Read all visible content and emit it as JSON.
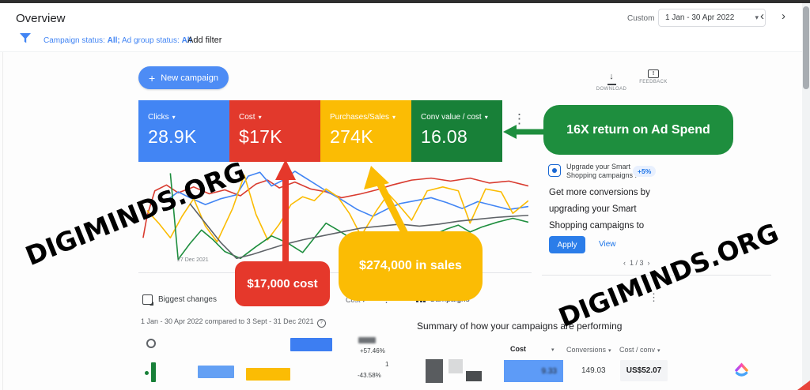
{
  "header": {
    "title": "Overview",
    "custom_label": "Custom",
    "date_range": "1 Jan - 30 Apr 2022"
  },
  "icons": {
    "caret_down": "▾",
    "plus": "+",
    "chevron_left": "‹",
    "chevron_right": "›",
    "dots_vertical": "⋮",
    "help": "?",
    "download_arrow": "↓",
    "feedback_mark": "!"
  },
  "filter_bar": {
    "campaign_status_label": "Campaign status:",
    "campaign_status_value": "All;",
    "ad_group_status_label": "Ad group status:",
    "ad_group_status_value": "All",
    "add_filter": "Add filter"
  },
  "toolbar": {
    "new_campaign": "New campaign",
    "download": "DOWNLOAD",
    "feedback": "FEEDBACK"
  },
  "scorecards": [
    {
      "label": "Clicks",
      "value": "28.9K",
      "color": "#4285f4"
    },
    {
      "label": "Cost",
      "value": "$17K",
      "color": "#e2392c"
    },
    {
      "label": "Purchases/Sales",
      "value": "274K",
      "color": "#fbbc04"
    },
    {
      "label": "Conv value / cost",
      "value": "16.08",
      "color": "#188038"
    }
  ],
  "callouts": {
    "roas": {
      "text": "16X return on Ad Spend",
      "color": "#1e8e3e"
    },
    "cost": {
      "text": "$17,000 cost",
      "color": "#e5382b"
    },
    "sales": {
      "text": "$274,000 in sales",
      "color": "#fbbc04"
    }
  },
  "chart": {
    "type": "line",
    "x_axis_label": "27 Dec 2021",
    "series": [
      {
        "name": "red",
        "color": "#d93b2f",
        "points": [
          [
            1,
            72
          ],
          [
            2,
            50
          ],
          [
            4,
            24
          ],
          [
            7,
            18
          ],
          [
            10,
            26
          ],
          [
            14,
            20
          ],
          [
            18,
            27
          ],
          [
            22,
            23
          ],
          [
            26,
            29
          ],
          [
            30,
            17
          ],
          [
            33,
            13
          ],
          [
            36,
            21
          ],
          [
            40,
            15
          ],
          [
            44,
            22
          ],
          [
            48,
            25
          ],
          [
            52,
            31
          ],
          [
            57,
            27
          ],
          [
            61,
            23
          ],
          [
            65,
            18
          ],
          [
            70,
            13
          ],
          [
            75,
            11
          ],
          [
            80,
            14
          ],
          [
            85,
            11
          ],
          [
            90,
            16
          ],
          [
            95,
            14
          ],
          [
            100,
            19
          ]
        ]
      },
      {
        "name": "blue",
        "color": "#4285f4",
        "points": [
          [
            7,
            34
          ],
          [
            10,
            25
          ],
          [
            13,
            31
          ],
          [
            17,
            38
          ],
          [
            21,
            32
          ],
          [
            25,
            28
          ],
          [
            28,
            9
          ],
          [
            31,
            5
          ],
          [
            34,
            19
          ],
          [
            37,
            13
          ],
          [
            40,
            4
          ],
          [
            44,
            14
          ],
          [
            48,
            24
          ],
          [
            52,
            33
          ],
          [
            56,
            43
          ],
          [
            60,
            50
          ],
          [
            64,
            42
          ],
          [
            67,
            37
          ],
          [
            71,
            34
          ],
          [
            75,
            31
          ],
          [
            79,
            36
          ],
          [
            83,
            42
          ],
          [
            87,
            35
          ],
          [
            91,
            39
          ],
          [
            95,
            43
          ],
          [
            100,
            40
          ]
        ]
      },
      {
        "name": "yellow",
        "color": "#fbbc04",
        "points": [
          [
            2,
            44
          ],
          [
            5,
            57
          ],
          [
            8,
            72
          ],
          [
            11,
            50
          ],
          [
            14,
            32
          ],
          [
            17,
            60
          ],
          [
            20,
            76
          ],
          [
            24,
            42
          ],
          [
            27,
            8
          ],
          [
            30,
            48
          ],
          [
            33,
            74
          ],
          [
            36,
            58
          ],
          [
            39,
            38
          ],
          [
            42,
            30
          ],
          [
            45,
            34
          ],
          [
            48,
            22
          ],
          [
            51,
            30
          ],
          [
            54,
            47
          ],
          [
            57,
            70
          ],
          [
            61,
            44
          ],
          [
            64,
            27
          ],
          [
            67,
            40
          ],
          [
            70,
            54
          ],
          [
            74,
            24
          ],
          [
            78,
            20
          ],
          [
            82,
            24
          ],
          [
            85,
            57
          ],
          [
            89,
            22
          ],
          [
            93,
            25
          ],
          [
            96,
            47
          ],
          [
            100,
            34
          ]
        ]
      },
      {
        "name": "green",
        "color": "#1e8e3e",
        "points": [
          [
            8,
            6
          ],
          [
            10,
            94
          ],
          [
            13,
            78
          ],
          [
            16,
            64
          ],
          [
            19,
            74
          ],
          [
            22,
            86
          ],
          [
            26,
            93
          ],
          [
            30,
            81
          ],
          [
            34,
            70
          ],
          [
            38,
            77
          ],
          [
            42,
            87
          ],
          [
            45,
            72
          ],
          [
            48,
            57
          ],
          [
            51,
            64
          ],
          [
            55,
            74
          ],
          [
            59,
            71
          ],
          [
            63,
            66
          ],
          [
            67,
            68
          ],
          [
            71,
            74
          ],
          [
            75,
            70
          ],
          [
            79,
            63
          ],
          [
            82,
            59
          ],
          [
            85,
            66
          ],
          [
            88,
            61
          ],
          [
            92,
            56
          ],
          [
            96,
            52
          ],
          [
            100,
            56
          ]
        ]
      },
      {
        "name": "gray",
        "color": "#5f6368",
        "points": [
          [
            13,
            37
          ],
          [
            17,
            57
          ],
          [
            21,
            77
          ],
          [
            25,
            93
          ],
          [
            29,
            89
          ],
          [
            33,
            84
          ],
          [
            37,
            79
          ],
          [
            42,
            74
          ],
          [
            47,
            70
          ],
          [
            52,
            66
          ],
          [
            57,
            62
          ],
          [
            62,
            60
          ],
          [
            67,
            58
          ],
          [
            72,
            60
          ],
          [
            77,
            58
          ],
          [
            82,
            55
          ],
          [
            87,
            53
          ],
          [
            92,
            51
          ],
          [
            100,
            49
          ]
        ]
      }
    ]
  },
  "promo": {
    "title": "Upgrade your Smart Shopping campaigns !",
    "badge": "+5%",
    "body": "Get more conversions by upgrading your Smart Shopping campaigns to",
    "apply": "Apply",
    "view": "View",
    "pagination": "1 / 3"
  },
  "biggest_changes": {
    "title": "Biggest changes",
    "compare_text": "1 Jan - 30 Apr 2022 compared to 3 Sept - 31 Dec 2021",
    "metric_label": "Cost",
    "rows": [
      {
        "change": "+57.46%"
      },
      {
        "top_value": "1",
        "change": "-43.58%"
      }
    ]
  },
  "campaigns_panel": {
    "title": "Campaigns",
    "summary": "Summary of how your campaigns are performing",
    "columns": [
      "Cost",
      "Conversions",
      "Cost / conv"
    ],
    "row": {
      "cost": "9.33",
      "conversions": "149.03",
      "cost_per_conv": "US$52.07"
    }
  },
  "watermark": "DIGIMINDS.ORG"
}
